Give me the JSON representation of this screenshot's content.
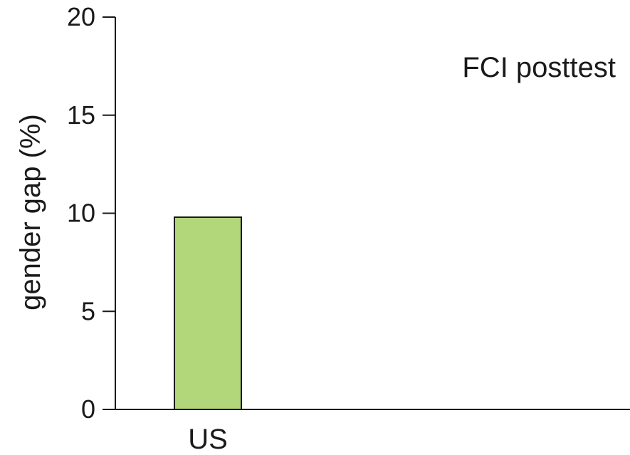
{
  "chart_data": {
    "type": "bar",
    "categories": [
      "US"
    ],
    "values": [
      9.8
    ],
    "title": "",
    "annotation": "FCI posttest",
    "xlabel": "",
    "ylabel": "gender gap (%)",
    "ylim": [
      0,
      20
    ],
    "yticks": [
      0,
      5,
      10,
      15,
      20
    ],
    "grid": false,
    "bar_color": "#b2d67a",
    "bar_stroke": "#1a1a1a",
    "axis_color": "#1a1a1a"
  }
}
